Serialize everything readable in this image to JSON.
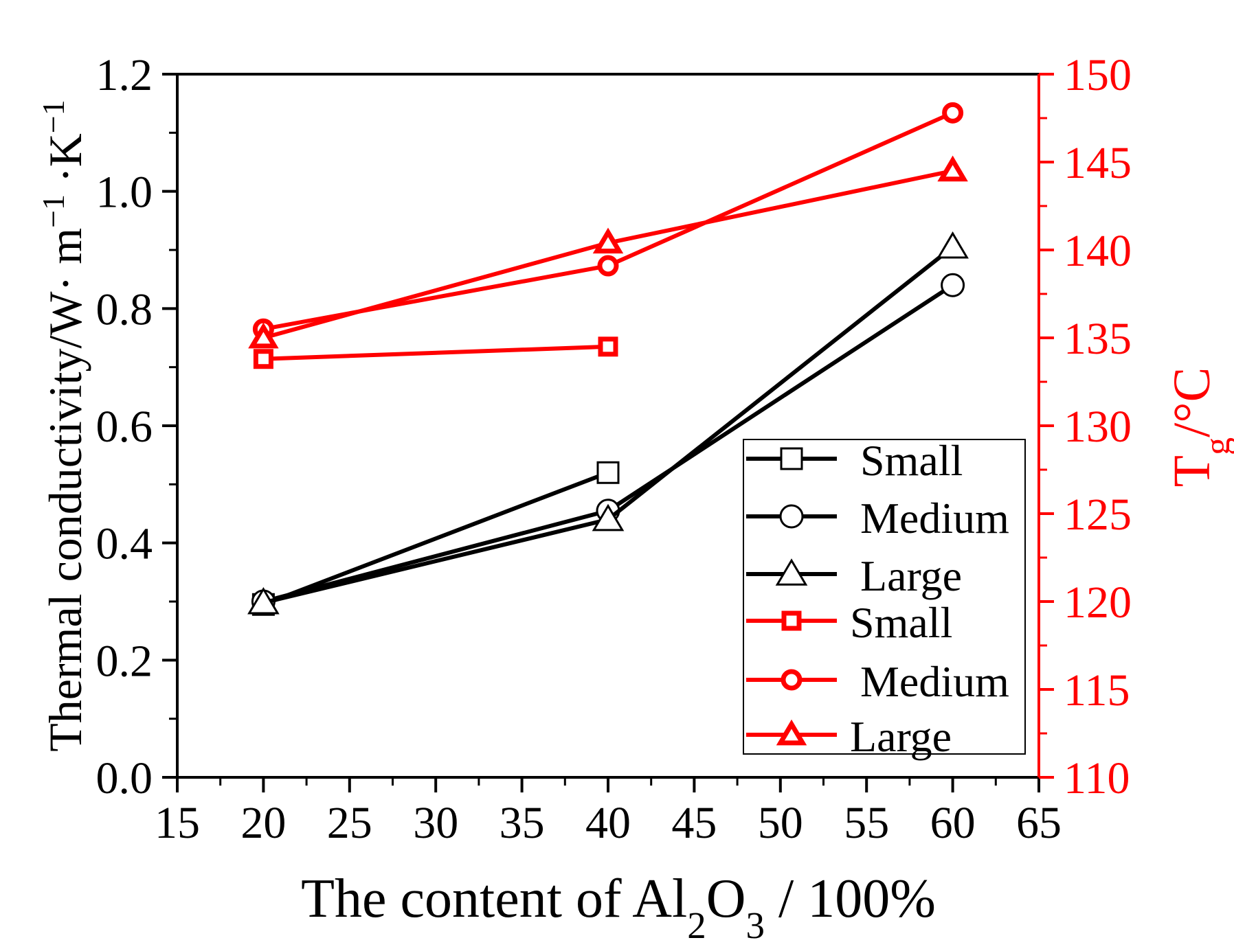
{
  "chart_data": {
    "type": "line",
    "x": [
      20,
      40,
      60
    ],
    "xlabel": {
      "prefix": "The content of Al",
      "sub1": "2",
      "mid": "O",
      "sub2": "3",
      "suffix": " / 100%"
    },
    "xlim": [
      15,
      65
    ],
    "xticks": [
      15,
      20,
      25,
      30,
      35,
      40,
      45,
      50,
      55,
      60,
      65
    ],
    "y_left": {
      "label": {
        "main": "Thermal conductivity/W· m",
        "sup1": "−1",
        "mid": " ·K",
        "sup2": "−1"
      },
      "lim": [
        0.0,
        1.2
      ],
      "ticks": [
        "0.0",
        "0.2",
        "0.4",
        "0.6",
        "0.8",
        "1.0",
        "1.2"
      ]
    },
    "y_right": {
      "label": {
        "main": "T",
        "sub": "g",
        "suffix": "/°C"
      },
      "lim": [
        110,
        150
      ],
      "ticks": [
        "110",
        "115",
        "120",
        "125",
        "130",
        "135",
        "140",
        "145",
        "150"
      ]
    },
    "series": [
      {
        "name": "Small",
        "axis": "left",
        "color": "#000000",
        "marker": "square",
        "x": [
          20,
          40
        ],
        "values": [
          0.295,
          0.52
        ]
      },
      {
        "name": "Medium",
        "axis": "left",
        "color": "#000000",
        "marker": "circle",
        "x": [
          20,
          40,
          60
        ],
        "values": [
          0.3,
          0.455,
          0.84
        ]
      },
      {
        "name": "Large",
        "axis": "left",
        "color": "#000000",
        "marker": "triangle",
        "x": [
          20,
          40,
          60
        ],
        "values": [
          0.298,
          0.44,
          0.905
        ]
      },
      {
        "name": "Small",
        "axis": "right",
        "color": "#ff0000",
        "marker": "square",
        "x": [
          20,
          40
        ],
        "values": [
          133.8,
          134.5
        ]
      },
      {
        "name": "Medium",
        "axis": "right",
        "color": "#ff0000",
        "marker": "circle",
        "x": [
          20,
          40,
          60
        ],
        "values": [
          135.5,
          139.1,
          147.8
        ]
      },
      {
        "name": "Large",
        "axis": "right",
        "color": "#ff0000",
        "marker": "triangle",
        "x": [
          20,
          40,
          60
        ],
        "values": [
          135.0,
          140.4,
          144.5
        ]
      }
    ],
    "legend": {
      "position": "bottom-right",
      "labels": [
        "Small",
        "Medium",
        "Large",
        "Small",
        "Medium",
        "Large"
      ]
    },
    "colors": {
      "left_axis": "#000000",
      "right_axis": "#ff0000"
    }
  }
}
